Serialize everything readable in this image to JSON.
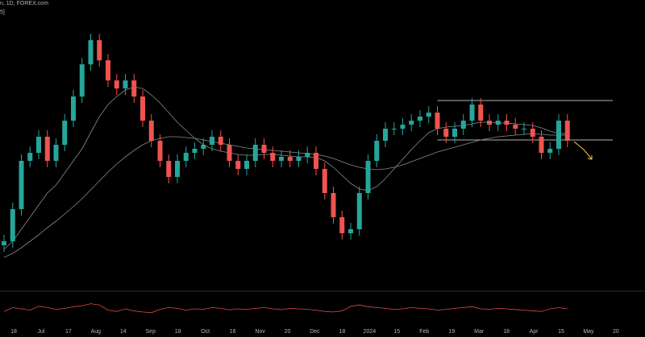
{
  "header": {
    "symbol": "n, 1D, FOREX.com",
    "indicator": "5]"
  },
  "chart_data": {
    "type": "candlestick",
    "x_labels": [
      "18",
      "Jul",
      "17",
      "Aug",
      "14",
      "Sep",
      "18",
      "Oct",
      "16",
      "Nov",
      "20",
      "Dec",
      "18",
      "2024",
      "15",
      "Feb",
      "19",
      "Mar",
      "18",
      "Apr",
      "15",
      "May",
      "20"
    ],
    "open": [
      95,
      100,
      140,
      200,
      210,
      230,
      200,
      220,
      250,
      280,
      320,
      350,
      325,
      300,
      290,
      300,
      280,
      250,
      225,
      200,
      180,
      200,
      210,
      215,
      220,
      230,
      220,
      200,
      190,
      200,
      220,
      210,
      200,
      205,
      200,
      205,
      210,
      190,
      160,
      130,
      110,
      115,
      160,
      200,
      225,
      240,
      240,
      245,
      250,
      255,
      260,
      240,
      230,
      240,
      250,
      270,
      250,
      245,
      250,
      245,
      240,
      240,
      230,
      210,
      215,
      250
    ],
    "high": [
      108,
      148,
      208,
      218,
      238,
      238,
      228,
      258,
      288,
      328,
      358,
      358,
      333,
      308,
      308,
      308,
      288,
      258,
      233,
      208,
      208,
      218,
      223,
      228,
      238,
      238,
      228,
      208,
      208,
      228,
      228,
      218,
      213,
      213,
      213,
      218,
      218,
      198,
      168,
      138,
      123,
      168,
      208,
      233,
      248,
      248,
      253,
      258,
      263,
      268,
      268,
      248,
      248,
      258,
      278,
      278,
      258,
      258,
      258,
      253,
      248,
      248,
      238,
      223,
      258,
      258
    ],
    "low": [
      87,
      92,
      132,
      192,
      202,
      192,
      192,
      212,
      242,
      272,
      312,
      317,
      292,
      282,
      282,
      272,
      242,
      217,
      192,
      172,
      172,
      192,
      202,
      207,
      212,
      212,
      192,
      182,
      182,
      192,
      202,
      192,
      192,
      192,
      192,
      197,
      182,
      152,
      122,
      102,
      102,
      107,
      152,
      192,
      217,
      232,
      232,
      237,
      242,
      247,
      232,
      222,
      222,
      232,
      242,
      242,
      237,
      237,
      237,
      232,
      232,
      222,
      202,
      202,
      207,
      217
    ],
    "close": [
      100,
      140,
      200,
      210,
      230,
      200,
      220,
      250,
      280,
      320,
      350,
      325,
      300,
      290,
      300,
      280,
      250,
      225,
      200,
      180,
      200,
      210,
      215,
      220,
      230,
      220,
      200,
      190,
      200,
      220,
      210,
      200,
      205,
      200,
      205,
      210,
      190,
      160,
      130,
      110,
      115,
      160,
      200,
      225,
      240,
      240,
      245,
      250,
      255,
      260,
      240,
      230,
      240,
      250,
      270,
      250,
      245,
      250,
      245,
      240,
      240,
      230,
      210,
      215,
      250,
      225
    ],
    "ma_fast": [
      90,
      100,
      115,
      130,
      145,
      160,
      170,
      185,
      200,
      215,
      235,
      255,
      270,
      280,
      288,
      292,
      290,
      282,
      272,
      260,
      248,
      238,
      228,
      220,
      215,
      212,
      210,
      208,
      207,
      207,
      208,
      208,
      207,
      206,
      205,
      205,
      204,
      200,
      192,
      182,
      172,
      165,
      163,
      168,
      178,
      190,
      202,
      214,
      225,
      235,
      240,
      242,
      243,
      244,
      246,
      248,
      248,
      247,
      247,
      246,
      245,
      244,
      241,
      237,
      234,
      234
    ],
    "ma_slow": [
      80,
      85,
      92,
      100,
      108,
      117,
      125,
      134,
      143,
      153,
      164,
      175,
      186,
      196,
      205,
      213,
      220,
      225,
      228,
      230,
      230,
      229,
      228,
      226,
      224,
      222,
      220,
      218,
      216,
      215,
      214,
      213,
      212,
      211,
      210,
      209,
      208,
      206,
      203,
      199,
      195,
      192,
      190,
      189,
      190,
      192,
      195,
      199,
      203,
      207,
      211,
      214,
      217,
      220,
      223,
      226,
      228,
      230,
      231,
      232,
      233,
      234,
      233,
      232,
      232,
      232
    ],
    "levels": [
      275,
      226
    ],
    "oscillator": [
      40,
      55,
      50,
      45,
      60,
      55,
      48,
      52,
      58,
      62,
      70,
      65,
      45,
      40,
      50,
      42,
      38,
      35,
      48,
      55,
      52,
      45,
      50,
      48,
      55,
      52,
      46,
      50,
      48,
      52,
      55,
      50,
      47,
      52,
      50,
      48,
      45,
      40,
      38,
      42,
      60,
      65,
      58,
      55,
      52,
      48,
      50,
      55,
      52,
      50,
      45,
      48,
      52,
      55,
      58,
      50,
      48,
      52,
      50,
      47,
      45,
      42,
      40,
      50,
      55,
      50
    ],
    "ylim": [
      40,
      400
    ],
    "osc_ylim": [
      0,
      100
    ],
    "up_color": "#26a69a",
    "down_color": "#ef5350",
    "ma_color": "#8a8a8a",
    "level_color": "#b0b0b0",
    "osc_color": "#e04848"
  }
}
